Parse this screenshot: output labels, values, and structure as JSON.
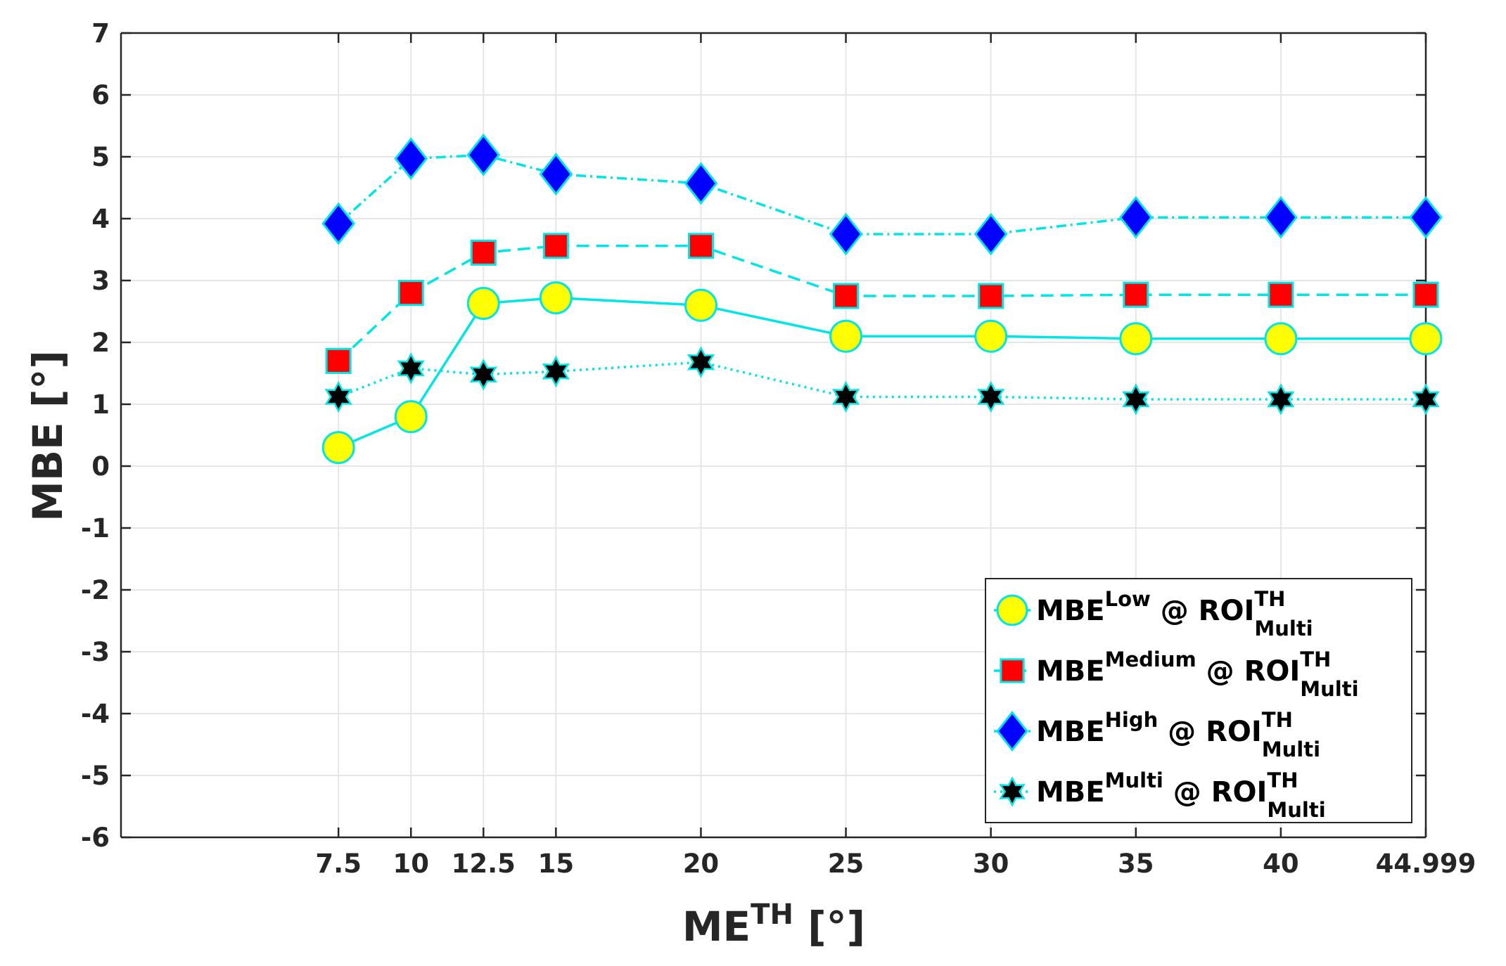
{
  "chart_data": {
    "type": "line",
    "xlabel": {
      "main": "ME",
      "sup": "TH",
      "unit": " [°]"
    },
    "ylabel": "MBE [°]",
    "ylim": [
      -6,
      7
    ],
    "yticks": [
      -6,
      -5,
      -4,
      -3,
      -2,
      -1,
      0,
      1,
      2,
      3,
      4,
      5,
      6,
      7
    ],
    "xlim": [
      0,
      45
    ],
    "x": [
      7.5,
      10,
      12.5,
      15,
      20,
      25,
      30,
      35,
      40,
      44.999
    ],
    "xtick_labels": [
      "7.5",
      "10",
      "12.5",
      "15",
      "20",
      "25",
      "30",
      "35",
      "40",
      "44.999"
    ],
    "grid": true,
    "legend_position": "bottom-right",
    "series": [
      {
        "name": "MBE^Low @ ROI^TH_Multi",
        "label": {
          "main": "MBE",
          "sup": "Low",
          "mid": " @ ROI",
          "sup2": "TH",
          "sub2": "Multi"
        },
        "marker": "circle",
        "marker_color": "#ffff00",
        "line_style": "solid",
        "line_color": "#00e5e5",
        "values": [
          0.3,
          0.8,
          2.63,
          2.72,
          2.6,
          2.1,
          2.1,
          2.06,
          2.06,
          2.06
        ]
      },
      {
        "name": "MBE^Medium @ ROI^TH_Multi",
        "label": {
          "main": "MBE",
          "sup": "Medium",
          "mid": " @ ROI",
          "sup2": "TH",
          "sub2": "Multi"
        },
        "marker": "square",
        "marker_color": "#ff0000",
        "line_style": "dashed",
        "line_color": "#00e5e5",
        "values": [
          1.7,
          2.8,
          3.45,
          3.56,
          3.56,
          2.75,
          2.75,
          2.77,
          2.77,
          2.77
        ]
      },
      {
        "name": "MBE^High @ ROI^TH_Multi",
        "label": {
          "main": "MBE",
          "sup": "High",
          "mid": " @ ROI",
          "sup2": "TH",
          "sub2": "Multi"
        },
        "marker": "diamond",
        "marker_color": "#0000ff",
        "line_style": "dashdot",
        "line_color": "#00e5e5",
        "values": [
          3.92,
          4.97,
          5.03,
          4.72,
          4.57,
          3.75,
          3.75,
          4.02,
          4.02,
          4.02
        ]
      },
      {
        "name": "MBE^Multi @ ROI^TH_Multi",
        "label": {
          "main": "MBE",
          "sup": "Multi",
          "mid": " @ ROI",
          "sup2": "TH",
          "sub2": "Multi"
        },
        "marker": "hexagram",
        "marker_color": "#000000",
        "line_style": "dotted",
        "line_color": "#00e5e5",
        "values": [
          1.12,
          1.58,
          1.48,
          1.53,
          1.68,
          1.12,
          1.12,
          1.08,
          1.08,
          1.08
        ]
      }
    ]
  }
}
